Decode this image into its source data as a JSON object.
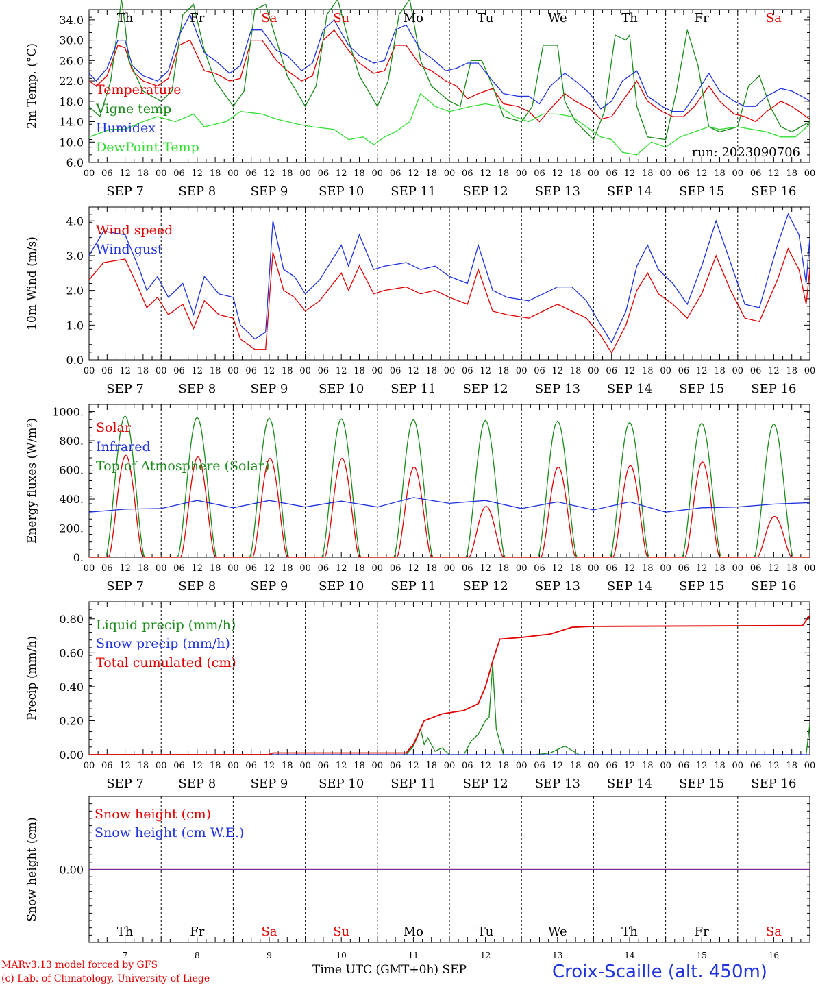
{
  "footer": {
    "model_line": "MARv3.13 model forced by GFS",
    "credit_line": "(c) Lab. of Climatology, University of Liege",
    "time_axis_label": "Time UTC (GMT+0h)",
    "month_label": "SEP",
    "site_label": "Croix-Scaille (alt. 450m)"
  },
  "run_label": "run: 2023090706",
  "colors": {
    "red": "#e00000",
    "green": "#1a8a1a",
    "blue": "#1f33dd",
    "lightgreen": "#33dd33",
    "purple": "#7a2a9a"
  },
  "hour_ticks": [
    "00",
    "06",
    "12",
    "18"
  ],
  "day_names": [
    {
      "label": "Th",
      "weekend": false
    },
    {
      "label": "Fr",
      "weekend": false
    },
    {
      "label": "Sa",
      "weekend": true
    },
    {
      "label": "Su",
      "weekend": true
    },
    {
      "label": "Mo",
      "weekend": false
    },
    {
      "label": "Tu",
      "weekend": false
    },
    {
      "label": "We",
      "weekend": false
    },
    {
      "label": "Th",
      "weekend": false
    },
    {
      "label": "Fr",
      "weekend": false
    },
    {
      "label": "Sa",
      "weekend": true
    }
  ],
  "date_labels": [
    "SEP  7",
    "SEP  8",
    "SEP  9",
    "SEP 10",
    "SEP 11",
    "SEP 12",
    "SEP 13",
    "SEP 14",
    "SEP 15",
    "SEP 16"
  ],
  "day_numbers": [
    "7",
    "8",
    "9",
    "10",
    "11",
    "12",
    "13",
    "14",
    "15",
    "16"
  ],
  "chart_data": [
    {
      "type": "line",
      "ylabel": "2m Temp. (°C)",
      "yticks": [
        "34.0",
        "30.0",
        "26.0",
        "22.0",
        "18.0",
        "14.0",
        "10.0",
        "6.0"
      ],
      "ylim": [
        6,
        36
      ],
      "x_unit": "days since SEP 7 00 UTC",
      "series": [
        {
          "name": "Temperature",
          "color": "red",
          "x": [
            0,
            0.1,
            0.25,
            0.4,
            0.5,
            0.6,
            0.75,
            0.95,
            1.1,
            1.25,
            1.4,
            1.6,
            1.75,
            1.95,
            2.1,
            2.25,
            2.4,
            2.6,
            2.75,
            2.95,
            3.1,
            3.25,
            3.4,
            3.6,
            3.75,
            3.95,
            4.1,
            4.25,
            4.4,
            4.6,
            4.75,
            4.95,
            5.1,
            5.25,
            5.4,
            5.6,
            5.75,
            5.95,
            6.1,
            6.25,
            6.4,
            6.6,
            6.75,
            6.95,
            7.1,
            7.25,
            7.4,
            7.6,
            7.75,
            7.95,
            8.1,
            8.25,
            8.4,
            8.6,
            8.75,
            8.95,
            9.1,
            9.25,
            9.4,
            9.6,
            9.75,
            9.95,
            10
          ],
          "y": [
            22,
            21,
            23,
            29,
            28.5,
            24,
            22,
            21,
            22.5,
            29,
            30,
            24,
            23.5,
            22,
            22.5,
            30,
            30,
            26,
            24,
            22,
            23,
            30,
            32,
            28,
            25.5,
            23.5,
            24,
            29,
            29,
            25,
            24,
            22,
            21,
            18.5,
            19.5,
            20.5,
            17.5,
            17,
            16,
            14,
            16.5,
            19.5,
            18,
            16.5,
            14.5,
            15,
            18,
            22,
            18,
            16,
            15,
            15,
            17,
            21,
            18,
            15.5,
            15,
            14,
            16,
            18,
            17,
            15,
            14.5
          ]
        },
        {
          "name": "Vigne temp",
          "color": "green",
          "x": [
            0,
            0.15,
            0.3,
            0.45,
            0.5,
            0.55,
            0.75,
            1.0,
            1.15,
            1.3,
            1.45,
            1.6,
            1.75,
            2.0,
            2.15,
            2.3,
            2.45,
            2.6,
            2.75,
            3.0,
            3.15,
            3.3,
            3.45,
            3.6,
            3.75,
            4.0,
            4.15,
            4.3,
            4.45,
            4.6,
            4.75,
            5.0,
            5.15,
            5.3,
            5.45,
            5.6,
            5.75,
            6.0,
            6.15,
            6.3,
            6.5,
            6.6,
            6.75,
            7.0,
            7.15,
            7.3,
            7.45,
            7.5,
            7.6,
            7.75,
            8.0,
            8.15,
            8.3,
            8.45,
            8.6,
            8.75,
            9.0,
            9.15,
            9.3,
            9.45,
            9.6,
            9.75,
            10
          ],
          "y": [
            17,
            15,
            22,
            38,
            33,
            26,
            20,
            18,
            20,
            35,
            37,
            28,
            22,
            17,
            20,
            36,
            37,
            30,
            23,
            17,
            21,
            35,
            38,
            30,
            23,
            17,
            22,
            35,
            38,
            26,
            21,
            18,
            17,
            26,
            26,
            21,
            15,
            14,
            17,
            29,
            29,
            18,
            14,
            10.5,
            16,
            31,
            30,
            31,
            17,
            11,
            10.5,
            20,
            32,
            25,
            13,
            12,
            13,
            21,
            23,
            17,
            13,
            12,
            14
          ]
        },
        {
          "name": "Humidex",
          "color": "blue",
          "x": [
            0,
            0.1,
            0.25,
            0.4,
            0.5,
            0.6,
            0.75,
            0.95,
            1.1,
            1.25,
            1.4,
            1.6,
            1.75,
            1.95,
            2.1,
            2.25,
            2.4,
            2.6,
            2.75,
            2.95,
            3.1,
            3.25,
            3.4,
            3.6,
            3.75,
            3.95,
            4.1,
            4.25,
            4.4,
            4.6,
            4.75,
            4.95,
            5.1,
            5.25,
            5.4,
            5.6,
            5.75,
            5.95,
            6.1,
            6.25,
            6.4,
            6.6,
            6.75,
            6.95,
            7.1,
            7.25,
            7.4,
            7.6,
            7.75,
            7.95,
            8.1,
            8.25,
            8.4,
            8.6,
            8.75,
            8.95,
            9.1,
            9.25,
            9.4,
            9.6,
            9.75,
            9.95,
            10
          ],
          "y": [
            23.5,
            22,
            24.5,
            30,
            30,
            25,
            23,
            22,
            24,
            31,
            35,
            27.5,
            26,
            23.5,
            25,
            32,
            32,
            28,
            27,
            24,
            25.5,
            32,
            34,
            29,
            27,
            25.5,
            26,
            32,
            33,
            28,
            26.5,
            24,
            24.5,
            25.5,
            25.5,
            22,
            19.5,
            19,
            19,
            17.5,
            21,
            23.5,
            22,
            19.5,
            16.5,
            18,
            22,
            24,
            19,
            17,
            16,
            16,
            19,
            23.5,
            20,
            18,
            17,
            17,
            19,
            20.5,
            20,
            18.5,
            18
          ]
        },
        {
          "name": "DewPoint Temp",
          "color": "lightgreen",
          "x": [
            0,
            0.3,
            0.5,
            0.75,
            0.95,
            1.2,
            1.45,
            1.6,
            1.9,
            2.1,
            2.4,
            2.6,
            2.9,
            3.1,
            3.4,
            3.6,
            3.8,
            3.95,
            4.1,
            4.25,
            4.45,
            4.6,
            4.8,
            5.0,
            5.3,
            5.5,
            5.7,
            5.9,
            6.1,
            6.3,
            6.5,
            6.7,
            6.9,
            7.1,
            7.25,
            7.4,
            7.6,
            7.8,
            8.0,
            8.2,
            8.4,
            8.6,
            8.75,
            9.0,
            9.2,
            9.4,
            9.6,
            9.8,
            10
          ],
          "y": [
            11,
            12.5,
            12.5,
            14,
            15,
            14,
            15.5,
            13,
            14,
            16,
            15.5,
            14.5,
            13.5,
            13,
            12.5,
            10.5,
            11,
            9.5,
            11,
            12,
            14,
            19.5,
            17,
            16,
            17,
            17.5,
            17,
            15,
            14,
            15.5,
            15.5,
            15,
            13,
            11,
            10.5,
            8,
            7.5,
            10,
            9,
            11,
            12,
            13,
            12.5,
            13,
            12.5,
            12,
            11,
            11,
            13.5
          ]
        }
      ],
      "legend_placement": "left"
    },
    {
      "type": "line",
      "ylabel": "10m Wind (m/s)",
      "yticks": [
        "4.0",
        "3.0",
        "2.0",
        "1.0",
        "0.0"
      ],
      "ylim": [
        0,
        4.4
      ],
      "x_unit": "days since SEP 7 00 UTC",
      "series": [
        {
          "name": "Wind speed",
          "color": "red",
          "x": [
            0,
            0.2,
            0.5,
            0.7,
            0.8,
            0.95,
            1.1,
            1.3,
            1.45,
            1.6,
            1.8,
            2.0,
            2.1,
            2.3,
            2.45,
            2.55,
            2.7,
            2.85,
            3.0,
            3.2,
            3.5,
            3.6,
            3.75,
            3.95,
            4.1,
            4.4,
            4.6,
            4.8,
            5.0,
            5.25,
            5.4,
            5.6,
            5.8,
            6.1,
            6.3,
            6.5,
            6.7,
            6.9,
            7.1,
            7.25,
            7.45,
            7.6,
            7.75,
            7.9,
            8.1,
            8.3,
            8.5,
            8.7,
            8.9,
            9.1,
            9.3,
            9.55,
            9.7,
            9.85,
            9.95,
            10
          ],
          "y": [
            2.3,
            2.8,
            2.9,
            2.0,
            1.5,
            1.8,
            1.3,
            1.6,
            0.9,
            1.7,
            1.3,
            1.2,
            0.6,
            0.3,
            0.3,
            3.1,
            2.0,
            1.8,
            1.4,
            1.7,
            2.5,
            2.0,
            2.7,
            1.9,
            2.0,
            2.1,
            1.9,
            2.0,
            1.8,
            1.6,
            2.6,
            1.4,
            1.3,
            1.2,
            1.4,
            1.6,
            1.4,
            1.2,
            0.7,
            0.2,
            1.0,
            2.0,
            2.5,
            1.9,
            1.6,
            1.2,
            1.9,
            3.0,
            2.0,
            1.2,
            1.1,
            2.3,
            3.2,
            2.6,
            1.6,
            2.6
          ]
        },
        {
          "name": "Wind gust",
          "color": "blue",
          "x": [
            0,
            0.2,
            0.5,
            0.7,
            0.8,
            0.95,
            1.1,
            1.3,
            1.45,
            1.6,
            1.8,
            2.0,
            2.1,
            2.3,
            2.45,
            2.55,
            2.7,
            2.85,
            3.0,
            3.2,
            3.5,
            3.6,
            3.75,
            3.95,
            4.1,
            4.4,
            4.6,
            4.8,
            5.0,
            5.25,
            5.4,
            5.6,
            5.8,
            6.1,
            6.3,
            6.5,
            6.7,
            6.9,
            7.1,
            7.25,
            7.45,
            7.6,
            7.75,
            7.9,
            8.1,
            8.3,
            8.5,
            8.7,
            8.9,
            9.1,
            9.3,
            9.55,
            9.7,
            9.85,
            9.95,
            10
          ],
          "y": [
            3.0,
            3.7,
            3.6,
            2.6,
            2.0,
            2.4,
            1.8,
            2.2,
            1.3,
            2.4,
            1.9,
            1.8,
            1.0,
            0.6,
            0.8,
            4.0,
            2.6,
            2.4,
            1.9,
            2.3,
            3.3,
            2.7,
            3.6,
            2.6,
            2.7,
            2.8,
            2.6,
            2.7,
            2.4,
            2.2,
            3.3,
            2.0,
            1.8,
            1.7,
            1.9,
            2.1,
            2.1,
            1.7,
            1.0,
            0.5,
            1.4,
            2.7,
            3.3,
            2.6,
            2.2,
            1.6,
            2.7,
            4.0,
            2.8,
            1.6,
            1.5,
            3.3,
            4.2,
            3.6,
            2.2,
            3.5
          ]
        }
      ],
      "legend_placement": "left"
    },
    {
      "type": "line",
      "ylabel": "Energy fluxes (W/m²)",
      "yticks": [
        "1000.",
        "800.",
        "600.",
        "400.",
        "200.",
        "0."
      ],
      "ylim": [
        0,
        1050
      ],
      "x_unit": "days since SEP 7 00 UTC",
      "series": [
        {
          "name": "Solar",
          "color": "red",
          "peaks": [
            700,
            690,
            680,
            680,
            620,
            350,
            620,
            630,
            655,
            280
          ]
        },
        {
          "name": "Infrared",
          "color": "blue",
          "x": [
            0,
            0.5,
            1.0,
            1.5,
            2.0,
            2.5,
            3.0,
            3.5,
            4.0,
            4.5,
            5.0,
            5.5,
            6.0,
            6.5,
            7.0,
            7.5,
            8.0,
            8.5,
            9.0,
            9.5,
            10
          ],
          "y": [
            310,
            330,
            335,
            390,
            340,
            390,
            345,
            385,
            345,
            410,
            370,
            390,
            335,
            380,
            325,
            380,
            310,
            340,
            345,
            365,
            375
          ]
        },
        {
          "name": "Top of Atmosphere (Solar)",
          "color": "green",
          "peaks": [
            970,
            960,
            955,
            950,
            945,
            940,
            935,
            925,
            920,
            915
          ]
        }
      ],
      "legend_placement": "left"
    },
    {
      "type": "line",
      "ylabel": "Precip (mm/h)",
      "yticks": [
        "0.80",
        "0.60",
        "0.40",
        "0.20",
        "0.00"
      ],
      "ylim": [
        0,
        0.9
      ],
      "x_unit": "days since SEP 7 00 UTC",
      "series": [
        {
          "name": "Liquid precip (mm/h)",
          "color": "green",
          "x": [
            0,
            4.4,
            4.5,
            4.55,
            4.6,
            4.65,
            4.7,
            4.8,
            4.9,
            5.0,
            5.2,
            5.3,
            5.4,
            5.5,
            5.55,
            5.6,
            5.65,
            5.75,
            6.2,
            6.4,
            6.6,
            6.8,
            9.95,
            10
          ],
          "y": [
            0,
            0,
            0.05,
            0.1,
            0.15,
            0.06,
            0.1,
            0.02,
            0.04,
            0,
            0,
            0.08,
            0.12,
            0.2,
            0.22,
            0.53,
            0.15,
            0,
            0,
            0.01,
            0.05,
            0,
            0,
            0.18
          ]
        },
        {
          "name": "Snow precip (mm/h)",
          "color": "blue",
          "x": [
            0,
            10
          ],
          "y": [
            0,
            0
          ]
        },
        {
          "name": "Total cumulated (cm)",
          "color": "red",
          "x": [
            0,
            2.5,
            2.55,
            4.4,
            4.5,
            4.65,
            4.9,
            5.2,
            5.4,
            5.5,
            5.6,
            5.7,
            6.0,
            6.4,
            6.7,
            7.0,
            9.9,
            10
          ],
          "y": [
            0,
            0,
            0.01,
            0.01,
            0.06,
            0.2,
            0.24,
            0.26,
            0.3,
            0.4,
            0.55,
            0.68,
            0.69,
            0.71,
            0.75,
            0.755,
            0.76,
            0.82
          ]
        }
      ],
      "legend_placement": "left"
    },
    {
      "type": "line",
      "ylabel": "Snow height (cm)",
      "yticks": [
        "0.00"
      ],
      "ylim": [
        -1,
        1
      ],
      "x_unit": "days since SEP 7 00 UTC",
      "series": [
        {
          "name": "Snow height (cm)",
          "color": "red",
          "x": [
            0,
            10
          ],
          "y": [
            0,
            0
          ]
        },
        {
          "name": "Snow height (cm W.E.)",
          "color": "blue",
          "x": [
            0,
            10
          ],
          "y": [
            0,
            0
          ]
        }
      ],
      "legend_placement": "left"
    }
  ]
}
